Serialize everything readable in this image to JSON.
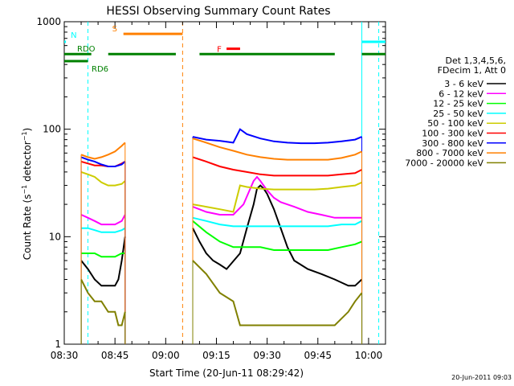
{
  "chart_data": {
    "type": "line",
    "title": "HESSI Observing Summary Count Rates",
    "xlabel": "Start Time (20-Jun-11 08:29:42)",
    "ylabel": "Count Rate (s⁻¹ detector⁻¹)",
    "yscale": "log",
    "ylim": [
      1,
      1000
    ],
    "xlim_min": [
      0,
      95
    ],
    "x_ticks": [
      {
        "min": 0,
        "label": "08:30"
      },
      {
        "min": 15,
        "label": "08:45"
      },
      {
        "min": 30,
        "label": "09:00"
      },
      {
        "min": 45,
        "label": "09:15"
      },
      {
        "min": 60,
        "label": "09:30"
      },
      {
        "min": 75,
        "label": "09:45"
      },
      {
        "min": 90,
        "label": "10:00"
      }
    ],
    "y_ticks": [
      {
        "value": 1,
        "label": "1"
      },
      {
        "value": 10,
        "label": "10"
      },
      {
        "value": 100,
        "label": "100"
      },
      {
        "value": 1000,
        "label": "1000"
      }
    ],
    "legend_title": [
      "Det 1,3,4,5,6,",
      "FDecim 1, Att 0"
    ],
    "legend_position": "right",
    "timestamp": "20-Jun-2011 09:03",
    "segments": [
      [
        5,
        18
      ],
      [
        38,
        88
      ]
    ],
    "series": [
      {
        "name": "3 - 6 keV",
        "color": "#000000",
        "pts": [
          [
            5,
            6
          ],
          [
            7,
            5
          ],
          [
            9,
            4
          ],
          [
            11,
            3.5
          ],
          [
            13,
            3.5
          ],
          [
            15,
            3.5
          ],
          [
            16,
            4
          ],
          [
            17,
            6
          ],
          [
            18,
            10
          ],
          [
            38,
            12
          ],
          [
            40,
            9
          ],
          [
            42,
            7
          ],
          [
            44,
            6
          ],
          [
            46,
            5.5
          ],
          [
            48,
            5
          ],
          [
            52,
            7
          ],
          [
            54,
            12
          ],
          [
            56,
            20
          ],
          [
            57,
            28
          ],
          [
            58,
            30
          ],
          [
            59,
            28
          ],
          [
            60,
            25
          ],
          [
            62,
            18
          ],
          [
            64,
            12
          ],
          [
            66,
            8
          ],
          [
            68,
            6
          ],
          [
            72,
            5
          ],
          [
            76,
            4.5
          ],
          [
            80,
            4
          ],
          [
            84,
            3.5
          ],
          [
            86,
            3.5
          ],
          [
            88,
            4
          ]
        ]
      },
      {
        "name": "6 - 12 keV",
        "color": "#ff00ff",
        "pts": [
          [
            5,
            16
          ],
          [
            7,
            15
          ],
          [
            9,
            14
          ],
          [
            11,
            13
          ],
          [
            13,
            13
          ],
          [
            15,
            13
          ],
          [
            17,
            14
          ],
          [
            18,
            16
          ],
          [
            38,
            19
          ],
          [
            42,
            17
          ],
          [
            46,
            16
          ],
          [
            50,
            16
          ],
          [
            53,
            20
          ],
          [
            55,
            28
          ],
          [
            56,
            33
          ],
          [
            57,
            36
          ],
          [
            58,
            33
          ],
          [
            60,
            27
          ],
          [
            62,
            23
          ],
          [
            64,
            21
          ],
          [
            68,
            19
          ],
          [
            72,
            17
          ],
          [
            76,
            16
          ],
          [
            80,
            15
          ],
          [
            84,
            15
          ],
          [
            88,
            15
          ]
        ]
      },
      {
        "name": "12 - 25 keV",
        "color": "#00ff00",
        "pts": [
          [
            5,
            7
          ],
          [
            7,
            7
          ],
          [
            9,
            7
          ],
          [
            11,
            6.5
          ],
          [
            13,
            6.5
          ],
          [
            15,
            6.5
          ],
          [
            17,
            7
          ],
          [
            18,
            7
          ],
          [
            38,
            14
          ],
          [
            42,
            11
          ],
          [
            46,
            9
          ],
          [
            50,
            8
          ],
          [
            54,
            8
          ],
          [
            58,
            8
          ],
          [
            62,
            7.5
          ],
          [
            66,
            7.5
          ],
          [
            70,
            7.5
          ],
          [
            74,
            7.5
          ],
          [
            78,
            7.5
          ],
          [
            82,
            8
          ],
          [
            86,
            8.5
          ],
          [
            88,
            9
          ]
        ]
      },
      {
        "name": "25 - 50 keV",
        "color": "#00ffff",
        "pts": [
          [
            5,
            12
          ],
          [
            7,
            12
          ],
          [
            9,
            11.5
          ],
          [
            11,
            11
          ],
          [
            13,
            11
          ],
          [
            15,
            11
          ],
          [
            17,
            11.5
          ],
          [
            18,
            12
          ],
          [
            38,
            15
          ],
          [
            42,
            14
          ],
          [
            46,
            13
          ],
          [
            50,
            12.5
          ],
          [
            54,
            12.5
          ],
          [
            58,
            12.5
          ],
          [
            62,
            12.5
          ],
          [
            66,
            12.5
          ],
          [
            70,
            12.5
          ],
          [
            74,
            12.5
          ],
          [
            78,
            12.5
          ],
          [
            82,
            13
          ],
          [
            86,
            13
          ],
          [
            88,
            14
          ]
        ]
      },
      {
        "name": "50 - 100 keV",
        "color": "#cccc00",
        "pts": [
          [
            5,
            40
          ],
          [
            7,
            38
          ],
          [
            9,
            36
          ],
          [
            11,
            32
          ],
          [
            13,
            30
          ],
          [
            15,
            30
          ],
          [
            17,
            31
          ],
          [
            18,
            33
          ],
          [
            38,
            20
          ],
          [
            42,
            19
          ],
          [
            46,
            18
          ],
          [
            50,
            17
          ],
          [
            52,
            30
          ],
          [
            54,
            29
          ],
          [
            58,
            28
          ],
          [
            62,
            27.5
          ],
          [
            66,
            27.5
          ],
          [
            70,
            27.5
          ],
          [
            74,
            27.5
          ],
          [
            78,
            28
          ],
          [
            82,
            29
          ],
          [
            86,
            30
          ],
          [
            88,
            32
          ]
        ]
      },
      {
        "name": "100 - 300 keV",
        "color": "#ff0000",
        "pts": [
          [
            5,
            50
          ],
          [
            7,
            48
          ],
          [
            9,
            46
          ],
          [
            11,
            46
          ],
          [
            13,
            45
          ],
          [
            15,
            45
          ],
          [
            17,
            48
          ],
          [
            18,
            50
          ],
          [
            38,
            55
          ],
          [
            42,
            50
          ],
          [
            46,
            45
          ],
          [
            50,
            42
          ],
          [
            54,
            40
          ],
          [
            58,
            38
          ],
          [
            62,
            37
          ],
          [
            66,
            37
          ],
          [
            70,
            37
          ],
          [
            74,
            37
          ],
          [
            78,
            37
          ],
          [
            82,
            38
          ],
          [
            86,
            39
          ],
          [
            88,
            42
          ]
        ]
      },
      {
        "name": "300 - 800 keV",
        "color": "#0000ff",
        "pts": [
          [
            5,
            55
          ],
          [
            7,
            52
          ],
          [
            9,
            50
          ],
          [
            11,
            47
          ],
          [
            13,
            45
          ],
          [
            15,
            45
          ],
          [
            17,
            47
          ],
          [
            18,
            50
          ],
          [
            38,
            85
          ],
          [
            42,
            80
          ],
          [
            46,
            78
          ],
          [
            50,
            75
          ],
          [
            52,
            100
          ],
          [
            54,
            90
          ],
          [
            58,
            82
          ],
          [
            62,
            77
          ],
          [
            66,
            75
          ],
          [
            70,
            74
          ],
          [
            74,
            74
          ],
          [
            78,
            75
          ],
          [
            82,
            77
          ],
          [
            86,
            80
          ],
          [
            88,
            85
          ]
        ]
      },
      {
        "name": "800 - 7000 keV",
        "color": "#ff8000",
        "pts": [
          [
            5,
            58
          ],
          [
            7,
            55
          ],
          [
            9,
            53
          ],
          [
            11,
            55
          ],
          [
            13,
            58
          ],
          [
            15,
            62
          ],
          [
            17,
            70
          ],
          [
            18,
            75
          ],
          [
            38,
            82
          ],
          [
            42,
            75
          ],
          [
            46,
            68
          ],
          [
            50,
            63
          ],
          [
            54,
            58
          ],
          [
            58,
            55
          ],
          [
            62,
            53
          ],
          [
            66,
            52
          ],
          [
            70,
            52
          ],
          [
            74,
            52
          ],
          [
            78,
            52
          ],
          [
            82,
            54
          ],
          [
            86,
            58
          ],
          [
            88,
            62
          ]
        ]
      },
      {
        "name": "7000 - 20000 keV",
        "color": "#808000",
        "pts": [
          [
            5,
            4
          ],
          [
            7,
            3
          ],
          [
            9,
            2.5
          ],
          [
            11,
            2.5
          ],
          [
            13,
            2
          ],
          [
            15,
            2
          ],
          [
            16,
            1.5
          ],
          [
            17,
            1.5
          ],
          [
            18,
            2
          ],
          [
            38,
            6
          ],
          [
            42,
            4.5
          ],
          [
            46,
            3
          ],
          [
            50,
            2.5
          ],
          [
            52,
            1.5
          ],
          [
            56,
            1.5
          ],
          [
            60,
            1.5
          ],
          [
            64,
            1.5
          ],
          [
            68,
            1.5
          ],
          [
            72,
            1.5
          ],
          [
            76,
            1.5
          ],
          [
            80,
            1.5
          ],
          [
            84,
            2
          ],
          [
            86,
            2.5
          ],
          [
            88,
            3
          ]
        ]
      }
    ],
    "markers": [
      {
        "label": "N",
        "color": "#00ffff",
        "segments": [
          [
            -2,
            0.5
          ],
          [
            88,
            95
          ]
        ],
        "level": 650
      },
      {
        "label": "S",
        "color": "#ff8000",
        "segments": [
          [
            17.5,
            35
          ]
        ],
        "level": 770
      },
      {
        "label": "F",
        "color": "#ff0000",
        "segments": [
          [
            48,
            52
          ]
        ],
        "level": 560
      },
      {
        "label": "RDO",
        "color": "#008000",
        "segments": [
          [
            -2,
            8
          ],
          [
            13,
            33
          ],
          [
            40,
            80
          ],
          [
            88,
            95
          ]
        ],
        "level": 500
      },
      {
        "label": "RD6",
        "color": "#008000",
        "segments": [
          [
            -2,
            7
          ]
        ],
        "level": 430
      }
    ],
    "vlines": [
      {
        "min": 7,
        "color": "#00ffff",
        "style": "dashed"
      },
      {
        "min": 35,
        "color": "#ff8000",
        "style": "dashed"
      },
      {
        "min": 88,
        "color": "#00ffff",
        "style": "solid"
      },
      {
        "min": 93,
        "color": "#00ffff",
        "style": "dashed"
      }
    ]
  }
}
